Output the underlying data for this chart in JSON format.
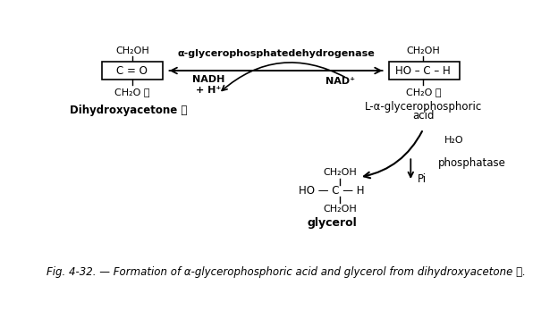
{
  "bg_color": "#ffffff",
  "figsize": [
    6.24,
    3.57
  ],
  "dpi": 100,
  "caption": "Fig. 4-32. — Formation of α-glycerophosphoric acid and glycerol from dihydroxyacetone Ⓟ.",
  "enzyme_label": "α-glycerophosphatedehydrogenase",
  "nadh_label": "NADH\n+ H⁺",
  "nad_label": "NAD⁺",
  "left_mol_top": "CH₂OH",
  "left_mol_mid": "C = O",
  "left_mol_bot": "CH₂O Ⓟ",
  "left_mol_label": "Dihydroxyacetone Ⓟ",
  "right_mol_top": "CH₂OH",
  "right_mol_mid": "HO – C – H",
  "right_mol_bot": "CH₂O Ⓟ",
  "right_mol_label1": "L-α-glycerophosphoric",
  "right_mol_label2": "acid",
  "glycerol_top": "CH₂OH",
  "glycerol_mid": "HO — C — H",
  "glycerol_bot": "CH₂OH",
  "glycerol_label": "glycerol",
  "h2o_label": "H₂O",
  "pi_label": "Pi",
  "phosphatase_label": "phosphatase"
}
